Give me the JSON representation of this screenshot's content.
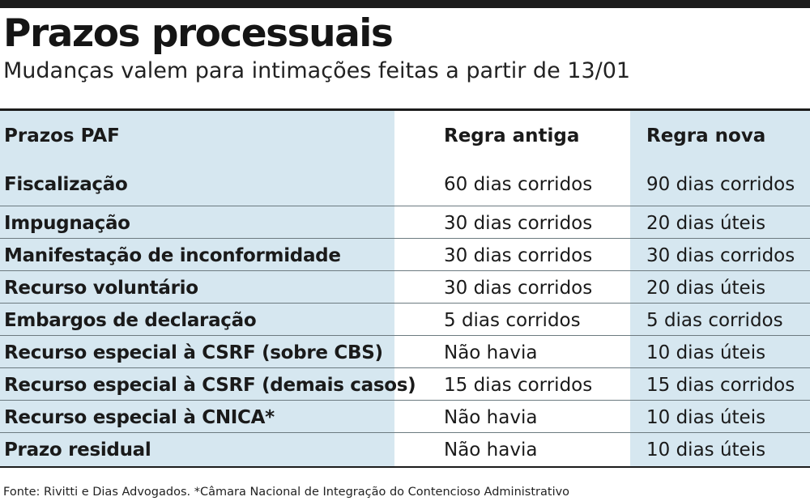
{
  "title": "Prazos processuais",
  "subtitle": "Mudanças valem para intimações feitas a partir de 13/01",
  "footer": "Fonte: Rivitti e Dias Advogados. *Câmara Nacional de Integração do Contencioso Administrativo",
  "colors": {
    "highlight_column": "#d6e7f0",
    "rule": "#1c1c1c"
  },
  "chart_data": {
    "type": "table",
    "columns": [
      "Prazos PAF",
      "Regra antiga",
      "Regra nova"
    ],
    "rows": [
      [
        "Fiscalização",
        "60 dias corridos",
        "90 dias corridos"
      ],
      [
        "Impugnação",
        "30 dias corridos",
        "20 dias úteis"
      ],
      [
        "Manifestação de inconformidade",
        "30 dias corridos",
        "30 dias corridos"
      ],
      [
        "Recurso voluntário",
        "30 dias corridos",
        "20 dias úteis"
      ],
      [
        "Embargos de declaração",
        "5 dias corridos",
        "5 dias corridos"
      ],
      [
        "Recurso especial à CSRF (sobre CBS)",
        "Não havia",
        "10 dias úteis"
      ],
      [
        "Recurso especial à CSRF (demais casos)",
        "15 dias corridos",
        "15 dias corridos"
      ],
      [
        "Recurso especial à CNICA*",
        "Não havia",
        "10 dias úteis"
      ],
      [
        "Prazo residual",
        "Não havia",
        "10 dias úteis"
      ]
    ]
  }
}
